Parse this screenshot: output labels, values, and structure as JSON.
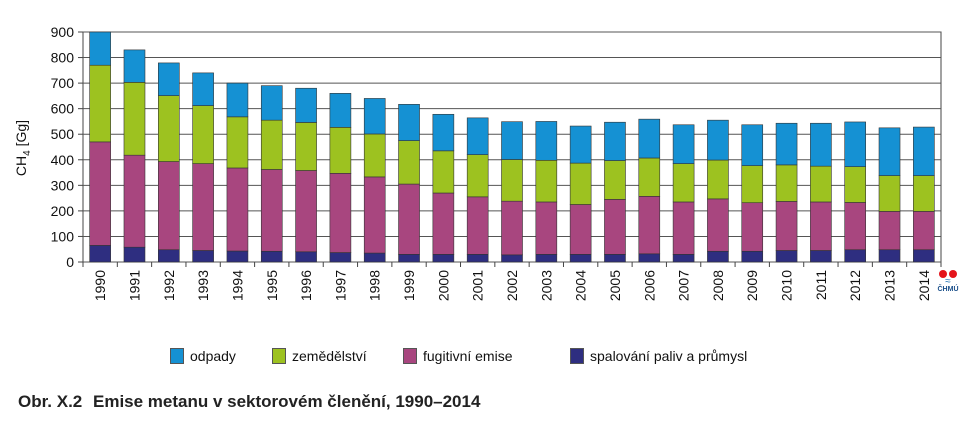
{
  "chart_data": {
    "type": "bar",
    "stacked": true,
    "categories": [
      "1990",
      "1991",
      "1992",
      "1993",
      "1994",
      "1995",
      "1996",
      "1997",
      "1998",
      "1999",
      "2000",
      "2001",
      "2002",
      "2003",
      "2004",
      "2005",
      "2006",
      "2007",
      "2008",
      "2009",
      "2010",
      "2011",
      "2012",
      "2013",
      "2014"
    ],
    "series": [
      {
        "name": "spalování paliv a průmysl",
        "color": "#2e2e80",
        "values": [
          65,
          58,
          48,
          45,
          43,
          42,
          40,
          37,
          35,
          30,
          30,
          30,
          28,
          30,
          30,
          30,
          32,
          30,
          42,
          42,
          45,
          45,
          48,
          48,
          48
        ]
      },
      {
        "name": "fugitivní emise",
        "color": "#a8467f",
        "values": [
          405,
          360,
          345,
          340,
          325,
          320,
          318,
          310,
          298,
          275,
          240,
          225,
          210,
          205,
          195,
          215,
          225,
          205,
          205,
          190,
          192,
          190,
          185,
          150,
          150
        ]
      },
      {
        "name": "zemědělství",
        "color": "#9dc220",
        "values": [
          300,
          285,
          258,
          227,
          200,
          193,
          188,
          180,
          168,
          170,
          165,
          165,
          163,
          163,
          162,
          152,
          150,
          150,
          152,
          145,
          143,
          140,
          140,
          140,
          140
        ]
      },
      {
        "name": "odpady",
        "color": "#1591d3",
        "values": [
          130,
          127,
          128,
          128,
          132,
          135,
          134,
          133,
          139,
          142,
          143,
          144,
          148,
          152,
          145,
          150,
          152,
          152,
          156,
          160,
          163,
          168,
          175,
          187,
          190
        ]
      }
    ],
    "ylabel_main": "CH",
    "ylabel_sub": "4",
    "ylabel_unit": " [Gg]",
    "ylim": [
      0,
      900
    ],
    "yticks": [
      "0",
      "100",
      "200",
      "300",
      "400",
      "500",
      "600",
      "700",
      "800",
      "900"
    ],
    "grid": true,
    "legend_position": "bottom"
  },
  "legend": [
    {
      "label": "odpady",
      "color": "#1591d3"
    },
    {
      "label": "zemědělství",
      "color": "#9dc220"
    },
    {
      "label": "fugitivní emise",
      "color": "#a8467f"
    },
    {
      "label": "spalování paliv a průmysl",
      "color": "#2e2e80"
    }
  ],
  "caption": {
    "number": "Obr. X.2",
    "text": "Emise metanu v sektorovém členění, 1990–2014"
  },
  "logo": {
    "text": "ČHMÚ"
  }
}
